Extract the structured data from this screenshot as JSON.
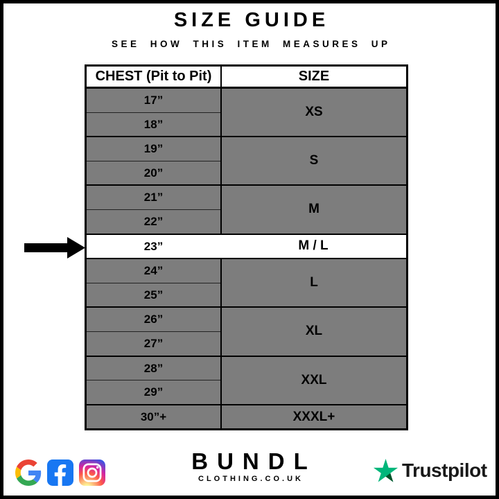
{
  "page": {
    "title": "SIZE GUIDE",
    "subtitle": "SEE HOW THIS ITEM MEASURES UP"
  },
  "table": {
    "headers": {
      "chest": "CHEST (Pit to Pit)",
      "size": "SIZE"
    },
    "groups": [
      {
        "size": "XS",
        "measurements": [
          "17”",
          "18”"
        ],
        "highlighted": false
      },
      {
        "size": "S",
        "measurements": [
          "19”",
          "20”"
        ],
        "highlighted": false
      },
      {
        "size": "M",
        "measurements": [
          "21”",
          "22”"
        ],
        "highlighted": false
      },
      {
        "size": "M / L",
        "measurements": [
          "23”"
        ],
        "highlighted": true
      },
      {
        "size": "L",
        "measurements": [
          "24”",
          "25”"
        ],
        "highlighted": false
      },
      {
        "size": "XL",
        "measurements": [
          "26”",
          "27”"
        ],
        "highlighted": false
      },
      {
        "size": "XXL",
        "measurements": [
          "28”",
          "29”"
        ],
        "highlighted": false
      },
      {
        "size": "XXXL+",
        "measurements": [
          "30”+"
        ],
        "highlighted": false
      }
    ]
  },
  "chart_data": {
    "type": "table",
    "title": "SIZE GUIDE",
    "subtitle": "SEE HOW THIS ITEM MEASURES UP",
    "columns": [
      "CHEST (Pit to Pit)",
      "SIZE"
    ],
    "rows": [
      [
        "17”",
        "XS"
      ],
      [
        "18”",
        "XS"
      ],
      [
        "19”",
        "S"
      ],
      [
        "20”",
        "S"
      ],
      [
        "21”",
        "M"
      ],
      [
        "22”",
        "M"
      ],
      [
        "23”",
        "M / L"
      ],
      [
        "24”",
        "L"
      ],
      [
        "25”",
        "L"
      ],
      [
        "26”",
        "XL"
      ],
      [
        "27”",
        "XL"
      ],
      [
        "28”",
        "XXL"
      ],
      [
        "29”",
        "XXL"
      ],
      [
        "30”+",
        "XXXL+"
      ]
    ],
    "highlighted_row": {
      "chest": "23”",
      "size": "M / L"
    },
    "layout": {
      "row_fill": "#7d7d7d",
      "highlight_fill": "#ffffff",
      "arrow_points_to": "23”"
    }
  },
  "footer": {
    "brand": {
      "name": "BUNDL",
      "domain": "CLOTHING.CO.UK"
    },
    "social_icons": [
      "google",
      "facebook",
      "instagram"
    ],
    "trustpilot_label": "Trustpilot"
  },
  "colors": {
    "row_gray": "#7d7d7d",
    "highlight_white": "#ffffff",
    "border_black": "#000000",
    "trustpilot_green": "#00B67A",
    "trustpilot_dark_green": "#005128",
    "facebook_blue": "#1877F2"
  }
}
